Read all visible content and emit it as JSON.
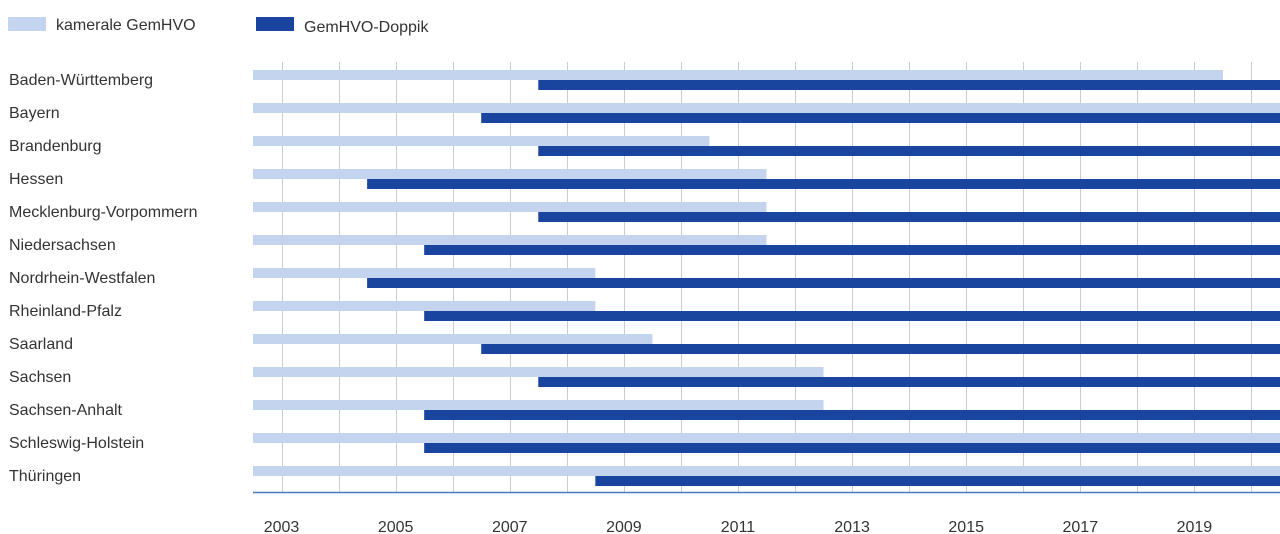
{
  "chart_data": {
    "type": "bar",
    "orientation": "horizontal-ranges",
    "legend": {
      "placement": "top-left",
      "items": [
        {
          "label": "kamerale GemHVO",
          "color": "#c5d4ee"
        },
        {
          "label": "GemHVO-Doppik",
          "color": "#1a459f"
        }
      ]
    },
    "x_axis": {
      "range": [
        2002.5,
        2020.5
      ],
      "ticks": [
        "2003",
        "2005",
        "2007",
        "2009",
        "2011",
        "2013",
        "2015",
        "2017",
        "2019"
      ],
      "grid": true
    },
    "categories": [
      "Baden-Württemberg",
      "Bayern",
      "Brandenburg",
      "Hessen",
      "Mecklenburg-Vorpommern",
      "Niedersachsen",
      "Nordrhein-Westfalen",
      "Rheinland-Pfalz",
      "Saarland",
      "Sachsen",
      "Sachsen-Anhalt",
      "Schleswig-Holstein",
      "Thüringen"
    ],
    "series": [
      {
        "name": "kamerale GemHVO",
        "color": "#c5d4ee",
        "ranges": [
          [
            2002.5,
            2019.5
          ],
          [
            2002.5,
            2020.5
          ],
          [
            2002.5,
            2010.5
          ],
          [
            2002.5,
            2011.5
          ],
          [
            2002.5,
            2011.5
          ],
          [
            2002.5,
            2011.5
          ],
          [
            2002.5,
            2008.5
          ],
          [
            2002.5,
            2008.5
          ],
          [
            2002.5,
            2009.5
          ],
          [
            2002.5,
            2012.5
          ],
          [
            2002.5,
            2012.5
          ],
          [
            2002.5,
            2020.5
          ],
          [
            2002.5,
            2020.5
          ]
        ]
      },
      {
        "name": "GemHVO-Doppik",
        "color": "#1a459f",
        "ranges": [
          [
            2007.5,
            2020.5
          ],
          [
            2006.5,
            2020.5
          ],
          [
            2007.5,
            2020.5
          ],
          [
            2004.5,
            2020.5
          ],
          [
            2007.5,
            2020.5
          ],
          [
            2005.5,
            2020.5
          ],
          [
            2004.5,
            2020.5
          ],
          [
            2005.5,
            2020.5
          ],
          [
            2006.5,
            2020.5
          ],
          [
            2007.5,
            2020.5
          ],
          [
            2005.5,
            2020.5
          ],
          [
            2005.5,
            2020.5
          ],
          [
            2008.5,
            2020.5
          ]
        ]
      }
    ],
    "colors": {
      "grid": "#cccccc",
      "axis": "#4a78b8",
      "text": "#333333"
    }
  }
}
